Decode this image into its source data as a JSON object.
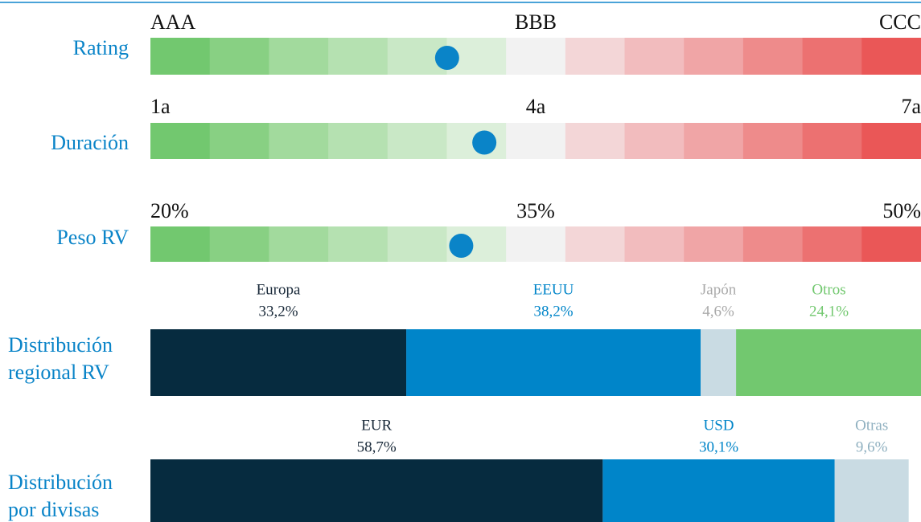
{
  "chart_data": [
    {
      "type": "gauge",
      "title": [
        "Rating"
      ],
      "xlim": [
        1,
        3
      ],
      "xticks": [
        {
          "value": 1,
          "label": "AAA"
        },
        {
          "value": 2,
          "label": "BBB"
        },
        {
          "value": 3,
          "label": "CCC"
        }
      ],
      "value": 1.77,
      "marker_color": "#0a84c8",
      "colors": [
        "#72c86f",
        "#88d083",
        "#a2da9d",
        "#b5e1b1",
        "#c9e8c6",
        "#dcefda",
        "#f2f2f2",
        "#f3d6d7",
        "#f2bcbe",
        "#f0a5a6",
        "#ee8b8b",
        "#ec7171",
        "#ea5757"
      ]
    },
    {
      "type": "gauge",
      "title": [
        "Duración"
      ],
      "xlim": [
        1,
        7
      ],
      "xticks": [
        {
          "value": 1,
          "label": "1a"
        },
        {
          "value": 4,
          "label": "4a"
        },
        {
          "value": 7,
          "label": "7a"
        }
      ],
      "value": 3.6,
      "marker_color": "#0a84c8",
      "colors": [
        "#72c86f",
        "#88d083",
        "#a2da9d",
        "#b5e1b1",
        "#c9e8c6",
        "#dcefda",
        "#f2f2f2",
        "#f3d6d7",
        "#f2bcbe",
        "#f0a5a6",
        "#ee8b8b",
        "#ec7171",
        "#ea5757"
      ]
    },
    {
      "type": "gauge",
      "title": [
        "Peso RV"
      ],
      "xlim": [
        20,
        50
      ],
      "xticks": [
        {
          "value": 20,
          "label": "20%"
        },
        {
          "value": 35,
          "label": "35%"
        },
        {
          "value": 50,
          "label": "50%"
        }
      ],
      "value": 32.1,
      "marker_color": "#0a84c8",
      "colors": [
        "#72c86f",
        "#88d083",
        "#a2da9d",
        "#b5e1b1",
        "#c9e8c6",
        "#dcefda",
        "#f2f2f2",
        "#f3d6d7",
        "#f2bcbe",
        "#f0a5a6",
        "#ee8b8b",
        "#ec7171",
        "#ea5757"
      ]
    },
    {
      "type": "stacked",
      "title": [
        "Distribución",
        "regional RV"
      ],
      "xlim": [
        0,
        100
      ],
      "series": [
        {
          "name": "Europa",
          "values": [
            33.2
          ],
          "value_labels": [
            "33,2%"
          ],
          "color": "#062b3f",
          "label_color": "#1a2a3a"
        },
        {
          "name": "EEUU",
          "values": [
            38.2
          ],
          "value_labels": [
            "38,2%"
          ],
          "color": "#0085c9",
          "label_color": "#0085c9"
        },
        {
          "name": "Japón",
          "values": [
            4.6
          ],
          "value_labels": [
            "4,6%"
          ],
          "color": "#c9dbe3",
          "label_color": "#aaaaaa"
        },
        {
          "name": "Otros",
          "values": [
            24.1
          ],
          "value_labels": [
            "24,1%"
          ],
          "color": "#72c86f",
          "label_color": "#72c86f"
        }
      ]
    },
    {
      "type": "stacked",
      "title": [
        "Distribución",
        "por divisas"
      ],
      "xlim": [
        0,
        100
      ],
      "series": [
        {
          "name": "EUR",
          "values": [
            58.7
          ],
          "value_labels": [
            "58,7%"
          ],
          "color": "#062b3f",
          "label_color": "#1a2a3a"
        },
        {
          "name": "USD",
          "values": [
            30.1
          ],
          "value_labels": [
            "30,1%"
          ],
          "color": "#0085c9",
          "label_color": "#0085c9"
        },
        {
          "name": "Otras",
          "values": [
            9.6
          ],
          "value_labels": [
            "9,6%"
          ],
          "color": "#c9dbe3",
          "label_color": "#8fb0c0"
        }
      ]
    }
  ]
}
